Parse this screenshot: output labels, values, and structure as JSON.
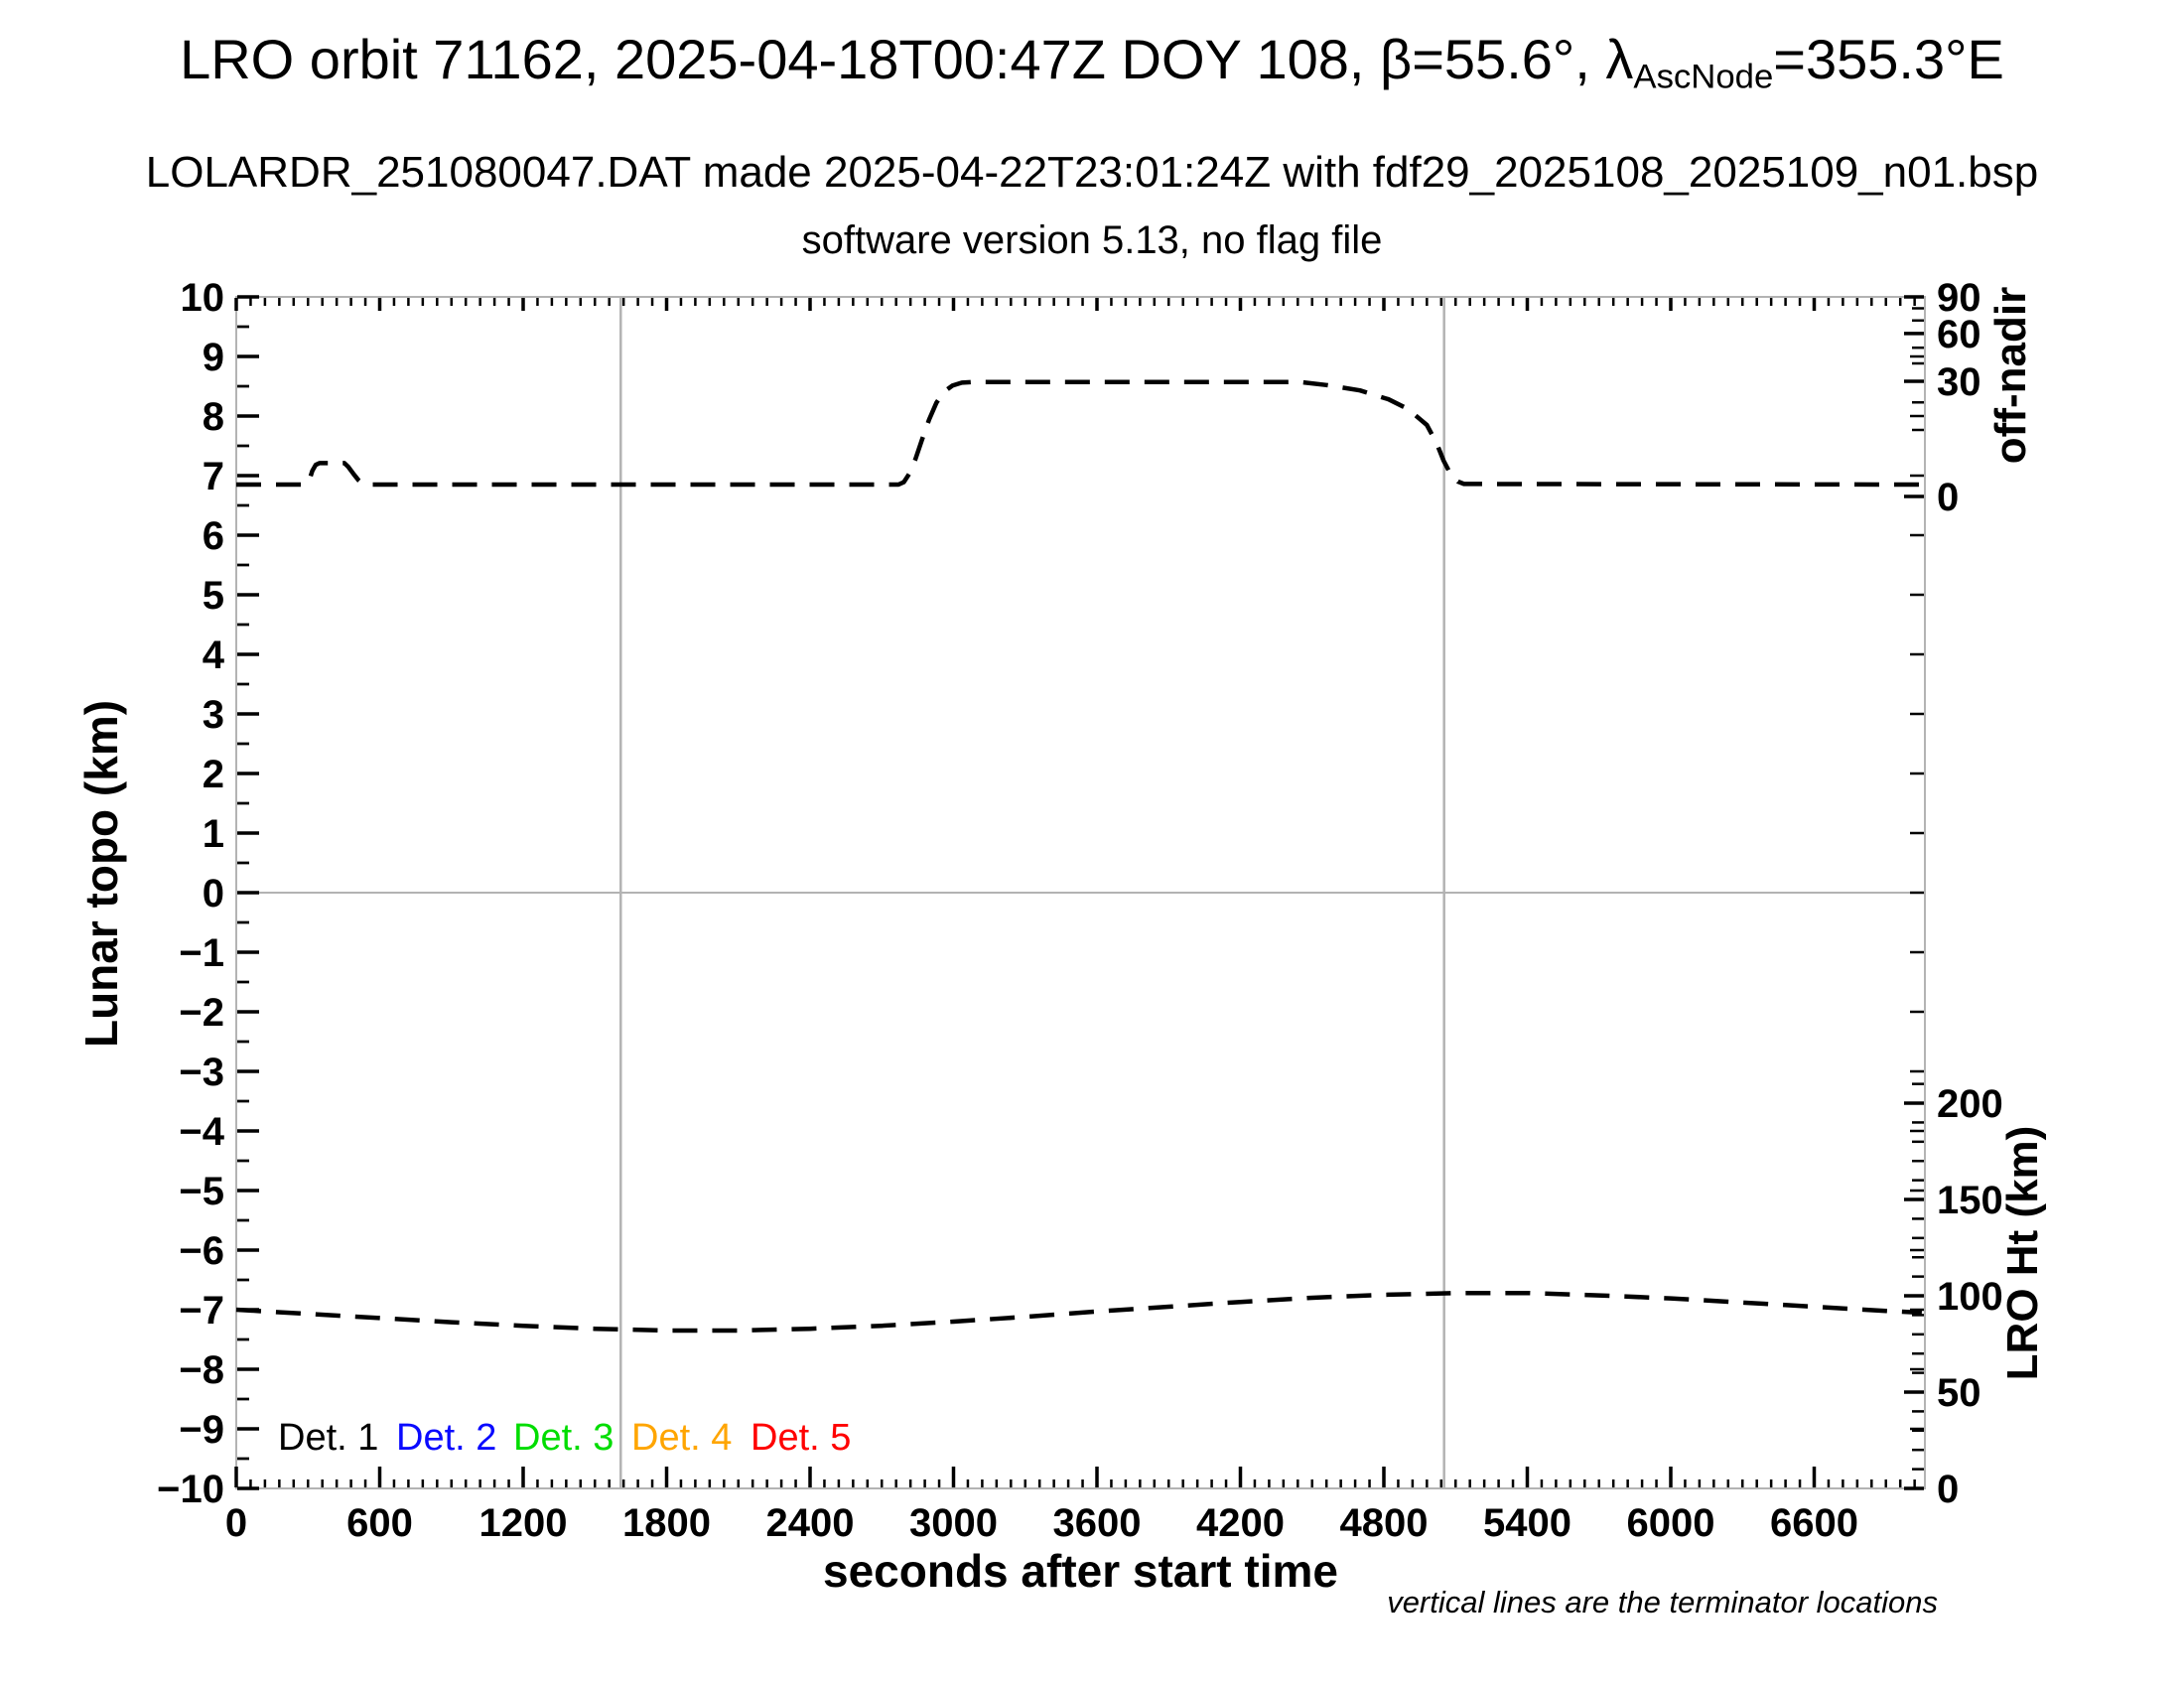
{
  "header": {
    "title_main": "LRO orbit 71162, 2025-04-18T00:47Z DOY 108, β=55.6°, λ",
    "title_sub": "AscNode",
    "title_tail": "=355.3°E",
    "subtitle": "LOLARDR_251080047.DAT made 2025-04-22T23:01:24Z with fdf29_2025108_2025109_n01.bsp",
    "subtitle2": "software version 5.13, no flag file"
  },
  "chart_data": {
    "type": "line",
    "title": "LRO orbit 71162, 2025-04-18T00:47Z DOY 108, β=55.6°, λAscNode=355.3°E",
    "x_axis": {
      "label": "seconds after start time",
      "min": 0,
      "max": 7063,
      "tick_labels": [
        0,
        600,
        1200,
        1800,
        2400,
        3000,
        3600,
        4200,
        4800,
        5400,
        6000,
        6600
      ],
      "minor_tick_step": 60
    },
    "y_left_axis": {
      "label": "Lunar topo (km)",
      "min": -10,
      "max": 10,
      "tick_labels": [
        10,
        9,
        8,
        7,
        6,
        5,
        4,
        3,
        2,
        1,
        0,
        -1,
        -2,
        -3,
        -4,
        -5,
        -6,
        -7,
        -8,
        -9,
        -10
      ],
      "minor_tick_step": 0.5
    },
    "y_right_offnadir_axis": {
      "label": "off-nadir",
      "tick_labels": [
        90,
        60,
        30,
        0
      ],
      "minor_ticks": [
        10,
        20,
        40,
        50,
        70,
        80
      ],
      "scale": "sqrt",
      "topo_at_0deg": 6.65,
      "topo_at_90deg": 10
    },
    "y_right_height_axis": {
      "label": "LRO Ht (km)",
      "tick_labels": [
        200,
        150,
        100,
        50,
        0
      ],
      "minor_tick_step": 10,
      "minor_tick_max": 210,
      "topo_at_0km": -10,
      "topo_per_km": 0.03233
    },
    "zero_line_topo": 0,
    "terminator_lines_seconds": [
      1608,
      5052
    ],
    "series": [
      {
        "name": "off-nadir angle profile",
        "color": "#000000",
        "line_style": "dashed",
        "units": "plotted against Lunar topo axis; 6.85 ≈ 0.5° baseline, 7.21 ≈ 2.5° bump, 8.57 ≈ 30° slew plateau",
        "points": [
          [
            0,
            6.85
          ],
          [
            290,
            6.85
          ],
          [
            305,
            6.92
          ],
          [
            318,
            7.08
          ],
          [
            332,
            7.18
          ],
          [
            348,
            7.21
          ],
          [
            452,
            7.21
          ],
          [
            468,
            7.15
          ],
          [
            492,
            7.02
          ],
          [
            512,
            6.92
          ],
          [
            528,
            6.86
          ],
          [
            545,
            6.85
          ],
          [
            2770,
            6.85
          ],
          [
            2792,
            6.89
          ],
          [
            2815,
            7.03
          ],
          [
            2840,
            7.27
          ],
          [
            2868,
            7.6
          ],
          [
            2898,
            7.94
          ],
          [
            2928,
            8.22
          ],
          [
            2958,
            8.4
          ],
          [
            2995,
            8.51
          ],
          [
            3035,
            8.56
          ],
          [
            3075,
            8.57
          ],
          [
            4450,
            8.57
          ],
          [
            4560,
            8.52
          ],
          [
            4700,
            8.43
          ],
          [
            4820,
            8.28
          ],
          [
            4900,
            8.12
          ],
          [
            4980,
            7.85
          ],
          [
            5020,
            7.55
          ],
          [
            5050,
            7.25
          ],
          [
            5080,
            7.02
          ],
          [
            5110,
            6.9
          ],
          [
            5135,
            6.86
          ],
          [
            7050,
            6.85
          ]
        ]
      },
      {
        "name": "LRO height profile",
        "color": "#000000",
        "line_style": "dashed",
        "units": "plotted against Lunar topo axis; −7.0 ≈ 93 km, −7.35 ≈ 82 km min, −6.72 ≈ 101 km max",
        "points": [
          [
            0,
            -7.0
          ],
          [
            300,
            -7.07
          ],
          [
            600,
            -7.14
          ],
          [
            900,
            -7.21
          ],
          [
            1200,
            -7.27
          ],
          [
            1500,
            -7.32
          ],
          [
            1800,
            -7.35
          ],
          [
            2100,
            -7.35
          ],
          [
            2400,
            -7.32
          ],
          [
            2700,
            -7.27
          ],
          [
            3000,
            -7.2
          ],
          [
            3300,
            -7.12
          ],
          [
            3600,
            -7.03
          ],
          [
            3900,
            -6.95
          ],
          [
            4200,
            -6.87
          ],
          [
            4500,
            -6.8
          ],
          [
            4800,
            -6.75
          ],
          [
            5100,
            -6.72
          ],
          [
            5400,
            -6.72
          ],
          [
            5700,
            -6.76
          ],
          [
            6000,
            -6.81
          ],
          [
            6300,
            -6.88
          ],
          [
            6600,
            -6.95
          ],
          [
            6900,
            -7.02
          ],
          [
            7050,
            -7.05
          ]
        ]
      }
    ],
    "legend": [
      {
        "label": "Det. 1",
        "color": "#000000"
      },
      {
        "label": "Det. 2",
        "color": "#0a0aff"
      },
      {
        "label": "Det. 3",
        "color": "#00dd00"
      },
      {
        "label": "Det. 4",
        "color": "#ffa500"
      },
      {
        "label": "Det. 5",
        "color": "#ff0000"
      }
    ],
    "footnote": "vertical lines are the terminator locations",
    "layout_hints": {
      "grid": "off",
      "legend_position": "inside bottom-left",
      "frame_color": "#b3b3b3"
    }
  }
}
